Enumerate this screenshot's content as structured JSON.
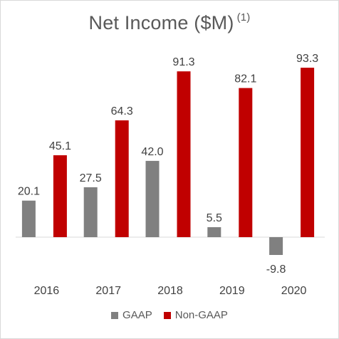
{
  "title": {
    "main": "Net Income ($M)",
    "footnote": "(1)"
  },
  "colors": {
    "gaap": "#808080",
    "non_gaap": "#c00000"
  },
  "chart_data": {
    "type": "bar",
    "title": "Net Income ($M)",
    "categories": [
      "2016",
      "2017",
      "2018",
      "2019",
      "2020"
    ],
    "series": [
      {
        "name": "GAAP",
        "values": [
          20.1,
          27.5,
          42.0,
          5.5,
          -9.8
        ],
        "labels": [
          "20.1",
          "27.5",
          "42.0",
          "5.5",
          "-9.8"
        ]
      },
      {
        "name": "Non-GAAP",
        "values": [
          45.1,
          64.3,
          91.3,
          82.1,
          93.3
        ],
        "labels": [
          "45.1",
          "64.3",
          "91.3",
          "82.1",
          "93.3"
        ]
      }
    ],
    "ylim": [
      -12,
      100
    ],
    "grid": false,
    "legend_position": "bottom"
  }
}
